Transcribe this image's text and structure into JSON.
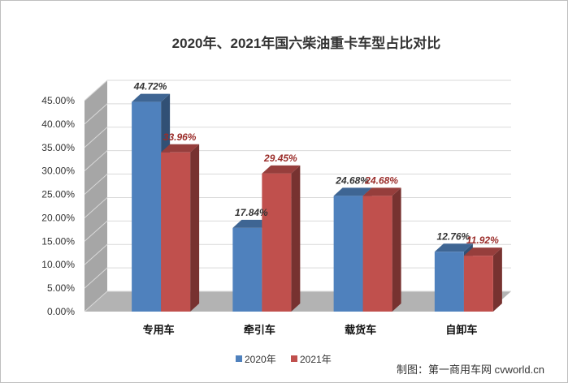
{
  "chart_data": {
    "type": "bar",
    "title": "2020年、2021年国六柴油重卡车型占比对比",
    "categories": [
      "专用车",
      "牵引车",
      "载货车",
      "自卸车"
    ],
    "series": [
      {
        "name": "2020年",
        "values": [
          44.72,
          17.84,
          24.68,
          12.76
        ],
        "color": "#4f81bd",
        "label_color": "#333333"
      },
      {
        "name": "2021年",
        "values": [
          33.96,
          29.45,
          24.68,
          11.92
        ],
        "color": "#c0504d",
        "label_color": "#9b2d2a"
      }
    ],
    "y_ticks": [
      "0.00%",
      "5.00%",
      "10.00%",
      "15.00%",
      "20.00%",
      "25.00%",
      "30.00%",
      "35.00%",
      "40.00%",
      "45.00%"
    ],
    "ylim": [
      0,
      45
    ],
    "grid": true,
    "legend_position": "bottom",
    "value_format": "percent_2dp"
  },
  "credit": "制图：第一商用车网 cvworld.cn"
}
